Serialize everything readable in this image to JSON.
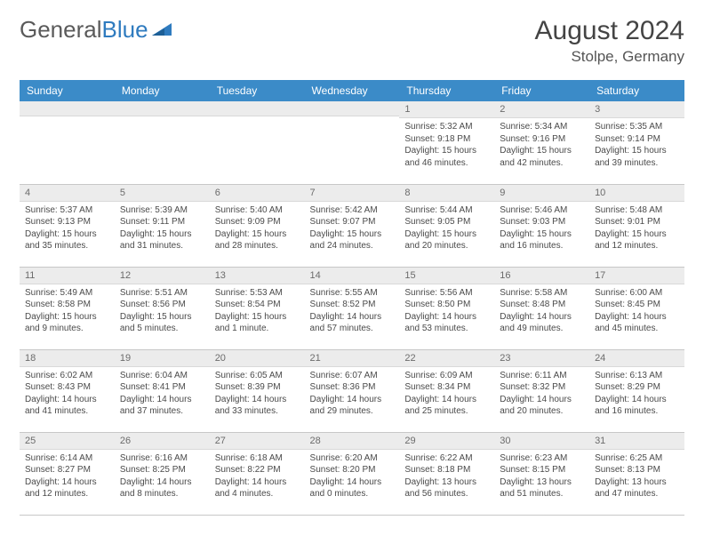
{
  "brand": {
    "part1": "General",
    "part2": "Blue"
  },
  "title": "August 2024",
  "location": "Stolpe, Germany",
  "colors": {
    "header_bg": "#3b8bc8",
    "header_text": "#ffffff",
    "daynum_bg": "#ececec",
    "border": "#c7c7c7",
    "text": "#4a4a4a"
  },
  "weekdays": [
    "Sunday",
    "Monday",
    "Tuesday",
    "Wednesday",
    "Thursday",
    "Friday",
    "Saturday"
  ],
  "weeks": [
    [
      {
        "n": "",
        "sr": "",
        "ss": "",
        "dl": ""
      },
      {
        "n": "",
        "sr": "",
        "ss": "",
        "dl": ""
      },
      {
        "n": "",
        "sr": "",
        "ss": "",
        "dl": ""
      },
      {
        "n": "",
        "sr": "",
        "ss": "",
        "dl": ""
      },
      {
        "n": "1",
        "sr": "Sunrise: 5:32 AM",
        "ss": "Sunset: 9:18 PM",
        "dl": "Daylight: 15 hours and 46 minutes."
      },
      {
        "n": "2",
        "sr": "Sunrise: 5:34 AM",
        "ss": "Sunset: 9:16 PM",
        "dl": "Daylight: 15 hours and 42 minutes."
      },
      {
        "n": "3",
        "sr": "Sunrise: 5:35 AM",
        "ss": "Sunset: 9:14 PM",
        "dl": "Daylight: 15 hours and 39 minutes."
      }
    ],
    [
      {
        "n": "4",
        "sr": "Sunrise: 5:37 AM",
        "ss": "Sunset: 9:13 PM",
        "dl": "Daylight: 15 hours and 35 minutes."
      },
      {
        "n": "5",
        "sr": "Sunrise: 5:39 AM",
        "ss": "Sunset: 9:11 PM",
        "dl": "Daylight: 15 hours and 31 minutes."
      },
      {
        "n": "6",
        "sr": "Sunrise: 5:40 AM",
        "ss": "Sunset: 9:09 PM",
        "dl": "Daylight: 15 hours and 28 minutes."
      },
      {
        "n": "7",
        "sr": "Sunrise: 5:42 AM",
        "ss": "Sunset: 9:07 PM",
        "dl": "Daylight: 15 hours and 24 minutes."
      },
      {
        "n": "8",
        "sr": "Sunrise: 5:44 AM",
        "ss": "Sunset: 9:05 PM",
        "dl": "Daylight: 15 hours and 20 minutes."
      },
      {
        "n": "9",
        "sr": "Sunrise: 5:46 AM",
        "ss": "Sunset: 9:03 PM",
        "dl": "Daylight: 15 hours and 16 minutes."
      },
      {
        "n": "10",
        "sr": "Sunrise: 5:48 AM",
        "ss": "Sunset: 9:01 PM",
        "dl": "Daylight: 15 hours and 12 minutes."
      }
    ],
    [
      {
        "n": "11",
        "sr": "Sunrise: 5:49 AM",
        "ss": "Sunset: 8:58 PM",
        "dl": "Daylight: 15 hours and 9 minutes."
      },
      {
        "n": "12",
        "sr": "Sunrise: 5:51 AM",
        "ss": "Sunset: 8:56 PM",
        "dl": "Daylight: 15 hours and 5 minutes."
      },
      {
        "n": "13",
        "sr": "Sunrise: 5:53 AM",
        "ss": "Sunset: 8:54 PM",
        "dl": "Daylight: 15 hours and 1 minute."
      },
      {
        "n": "14",
        "sr": "Sunrise: 5:55 AM",
        "ss": "Sunset: 8:52 PM",
        "dl": "Daylight: 14 hours and 57 minutes."
      },
      {
        "n": "15",
        "sr": "Sunrise: 5:56 AM",
        "ss": "Sunset: 8:50 PM",
        "dl": "Daylight: 14 hours and 53 minutes."
      },
      {
        "n": "16",
        "sr": "Sunrise: 5:58 AM",
        "ss": "Sunset: 8:48 PM",
        "dl": "Daylight: 14 hours and 49 minutes."
      },
      {
        "n": "17",
        "sr": "Sunrise: 6:00 AM",
        "ss": "Sunset: 8:45 PM",
        "dl": "Daylight: 14 hours and 45 minutes."
      }
    ],
    [
      {
        "n": "18",
        "sr": "Sunrise: 6:02 AM",
        "ss": "Sunset: 8:43 PM",
        "dl": "Daylight: 14 hours and 41 minutes."
      },
      {
        "n": "19",
        "sr": "Sunrise: 6:04 AM",
        "ss": "Sunset: 8:41 PM",
        "dl": "Daylight: 14 hours and 37 minutes."
      },
      {
        "n": "20",
        "sr": "Sunrise: 6:05 AM",
        "ss": "Sunset: 8:39 PM",
        "dl": "Daylight: 14 hours and 33 minutes."
      },
      {
        "n": "21",
        "sr": "Sunrise: 6:07 AM",
        "ss": "Sunset: 8:36 PM",
        "dl": "Daylight: 14 hours and 29 minutes."
      },
      {
        "n": "22",
        "sr": "Sunrise: 6:09 AM",
        "ss": "Sunset: 8:34 PM",
        "dl": "Daylight: 14 hours and 25 minutes."
      },
      {
        "n": "23",
        "sr": "Sunrise: 6:11 AM",
        "ss": "Sunset: 8:32 PM",
        "dl": "Daylight: 14 hours and 20 minutes."
      },
      {
        "n": "24",
        "sr": "Sunrise: 6:13 AM",
        "ss": "Sunset: 8:29 PM",
        "dl": "Daylight: 14 hours and 16 minutes."
      }
    ],
    [
      {
        "n": "25",
        "sr": "Sunrise: 6:14 AM",
        "ss": "Sunset: 8:27 PM",
        "dl": "Daylight: 14 hours and 12 minutes."
      },
      {
        "n": "26",
        "sr": "Sunrise: 6:16 AM",
        "ss": "Sunset: 8:25 PM",
        "dl": "Daylight: 14 hours and 8 minutes."
      },
      {
        "n": "27",
        "sr": "Sunrise: 6:18 AM",
        "ss": "Sunset: 8:22 PM",
        "dl": "Daylight: 14 hours and 4 minutes."
      },
      {
        "n": "28",
        "sr": "Sunrise: 6:20 AM",
        "ss": "Sunset: 8:20 PM",
        "dl": "Daylight: 14 hours and 0 minutes."
      },
      {
        "n": "29",
        "sr": "Sunrise: 6:22 AM",
        "ss": "Sunset: 8:18 PM",
        "dl": "Daylight: 13 hours and 56 minutes."
      },
      {
        "n": "30",
        "sr": "Sunrise: 6:23 AM",
        "ss": "Sunset: 8:15 PM",
        "dl": "Daylight: 13 hours and 51 minutes."
      },
      {
        "n": "31",
        "sr": "Sunrise: 6:25 AM",
        "ss": "Sunset: 8:13 PM",
        "dl": "Daylight: 13 hours and 47 minutes."
      }
    ]
  ]
}
